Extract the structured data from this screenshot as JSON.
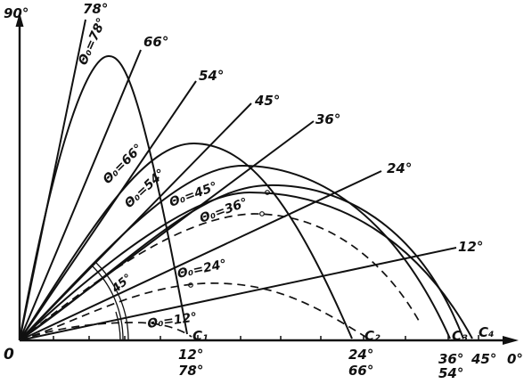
{
  "axis": {
    "origin": "0",
    "y_end": "90°",
    "x_end": "0°"
  },
  "rays": [
    {
      "id": "78",
      "label": "78°"
    },
    {
      "id": "66",
      "label": "66°"
    },
    {
      "id": "54",
      "label": "54°"
    },
    {
      "id": "45",
      "label": "45°"
    },
    {
      "id": "36",
      "label": "36°"
    },
    {
      "id": "24",
      "label": "24°"
    },
    {
      "id": "12",
      "label": "12°"
    }
  ],
  "trajectory_labels": [
    {
      "id": "78",
      "text": "Θ₀=78°"
    },
    {
      "id": "66",
      "text": "Θ₀=66°"
    },
    {
      "id": "54",
      "text": "Θ₀=54°"
    },
    {
      "id": "45",
      "text": "Θ₀=45°"
    },
    {
      "id": "36",
      "text": "Θ₀=36°"
    },
    {
      "id": "24",
      "text": "Θ₀=24°"
    },
    {
      "id": "12",
      "text": "Θ₀=12°"
    }
  ],
  "angle_arc_label": "45°",
  "range_points": [
    {
      "id": "c1",
      "label": "C₁"
    },
    {
      "id": "c2",
      "label": "C₂"
    },
    {
      "id": "c3",
      "label": "C₃"
    },
    {
      "id": "c4",
      "label": "C₄"
    }
  ],
  "axis_labels": [
    {
      "id": "12",
      "top": "12°",
      "bottom": "78°"
    },
    {
      "id": "24",
      "top": "24°",
      "bottom": "66°"
    },
    {
      "id": "36",
      "top": "36°",
      "bottom": "54°"
    },
    {
      "id": "45",
      "top": "45°",
      "bottom": ""
    }
  ]
}
